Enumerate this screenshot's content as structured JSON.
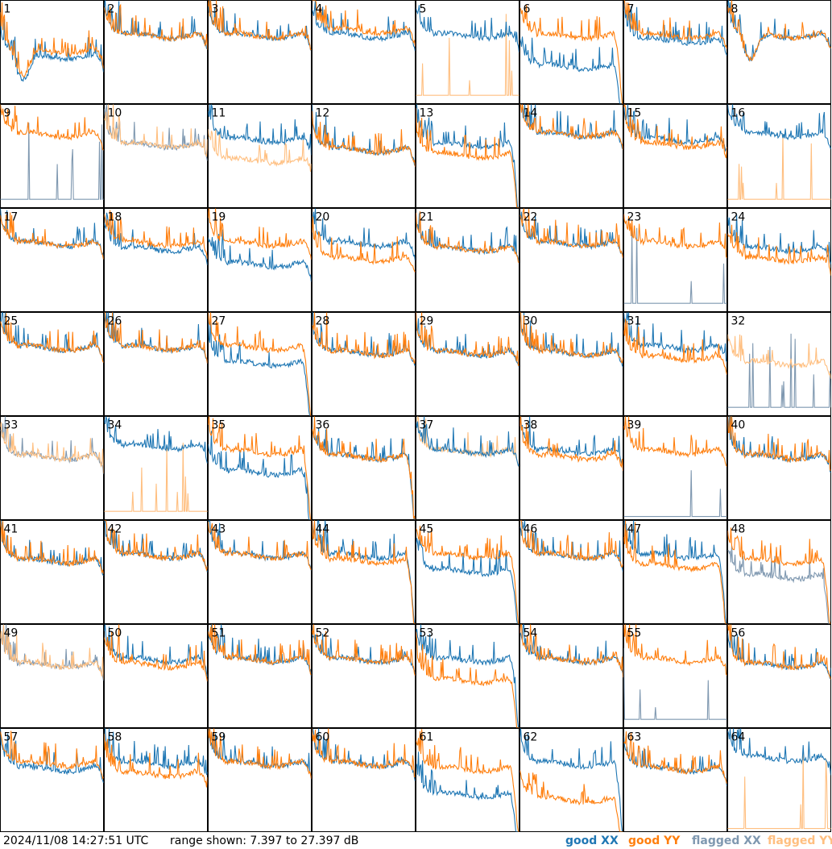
{
  "chart_data": {
    "type": "line",
    "layout": "8x8 small multiples",
    "panel_count": 64,
    "x_axis_visible": false,
    "y_axis_visible": false,
    "grid": false,
    "y_range_db": [
      7.397,
      27.397
    ],
    "colors": {
      "good_xx": "#1f77b4",
      "good_yy": "#ff7f0e",
      "flagged_xx": "#7f98b0",
      "flagged_yy": "#ffbf80"
    },
    "legend": {
      "placement": "bottom-right",
      "entries": [
        {
          "key": "good_xx",
          "label": "good XX"
        },
        {
          "key": "good_yy",
          "label": "good YY"
        },
        {
          "key": "flagged_xx",
          "label": "flagged XX"
        },
        {
          "key": "flagged_yy",
          "label": "flagged YY"
        }
      ]
    },
    "panels": [
      {
        "label": "1",
        "xx": "good",
        "yy": "good",
        "shape": "dip",
        "xx_level": 16,
        "yy_level": 17
      },
      {
        "label": "2",
        "xx": "good",
        "yy": "good",
        "shape": "normal",
        "xx_level": 20,
        "yy_level": 20
      },
      {
        "label": "3",
        "xx": "good",
        "yy": "good",
        "shape": "normal",
        "xx_level": 20,
        "yy_level": 20
      },
      {
        "label": "4",
        "xx": "good",
        "yy": "good",
        "shape": "normal",
        "xx_level": 20,
        "yy_level": 21
      },
      {
        "label": "5",
        "xx": "good",
        "yy": "flagged",
        "shape": "normal",
        "xx_level": 20,
        "yy_level": 9
      },
      {
        "label": "6",
        "xx": "good",
        "yy": "good",
        "shape": "drop",
        "xx_level": 14,
        "yy_level": 20
      },
      {
        "label": "7",
        "xx": "good",
        "yy": "good",
        "shape": "normal",
        "xx_level": 19,
        "yy_level": 20
      },
      {
        "label": "8",
        "xx": "good",
        "yy": "good",
        "shape": "dip",
        "xx_level": 20,
        "yy_level": 20
      },
      {
        "label": "9",
        "xx": "flagged",
        "yy": "good",
        "shape": "normal",
        "xx_level": 9,
        "yy_level": 21
      },
      {
        "label": "10",
        "xx": "flagged",
        "yy": "flagged",
        "shape": "normal",
        "xx_level": 19,
        "yy_level": 19
      },
      {
        "label": "11",
        "xx": "good",
        "yy": "flagged",
        "shape": "normal",
        "xx_level": 20,
        "yy_level": 16
      },
      {
        "label": "12",
        "xx": "good",
        "yy": "good",
        "shape": "normal",
        "xx_level": 18,
        "yy_level": 18
      },
      {
        "label": "13",
        "xx": "good",
        "yy": "good",
        "shape": "drop",
        "xx_level": 19,
        "yy_level": 17
      },
      {
        "label": "14",
        "xx": "good",
        "yy": "good",
        "shape": "normal",
        "xx_level": 21,
        "yy_level": 21
      },
      {
        "label": "15",
        "xx": "good",
        "yy": "good",
        "shape": "normal",
        "xx_level": 20,
        "yy_level": 19
      },
      {
        "label": "16",
        "xx": "good",
        "yy": "flagged",
        "shape": "normal",
        "xx_level": 21,
        "yy_level": 9
      },
      {
        "label": "17",
        "xx": "good",
        "yy": "good",
        "shape": "normal",
        "xx_level": 20,
        "yy_level": 20
      },
      {
        "label": "18",
        "xx": "good",
        "yy": "good",
        "shape": "normal",
        "xx_level": 19,
        "yy_level": 20
      },
      {
        "label": "19",
        "xx": "good",
        "yy": "good",
        "shape": "normal",
        "xx_level": 16,
        "yy_level": 20
      },
      {
        "label": "20",
        "xx": "good",
        "yy": "good",
        "shape": "normal",
        "xx_level": 20,
        "yy_level": 17
      },
      {
        "label": "21",
        "xx": "good",
        "yy": "good",
        "shape": "normal",
        "xx_level": 19,
        "yy_level": 19
      },
      {
        "label": "22",
        "xx": "good",
        "yy": "good",
        "shape": "normal",
        "xx_level": 20,
        "yy_level": 20
      },
      {
        "label": "23",
        "xx": "flagged",
        "yy": "good",
        "shape": "normal",
        "xx_level": 9,
        "yy_level": 20
      },
      {
        "label": "24",
        "xx": "good",
        "yy": "good",
        "shape": "normal",
        "xx_level": 19,
        "yy_level": 17
      },
      {
        "label": "25",
        "xx": "good",
        "yy": "good",
        "shape": "normal",
        "xx_level": 20,
        "yy_level": 20
      },
      {
        "label": "26",
        "xx": "good",
        "yy": "good",
        "shape": "normal",
        "xx_level": 20,
        "yy_level": 20
      },
      {
        "label": "27",
        "xx": "good",
        "yy": "good",
        "shape": "drop",
        "xx_level": 17,
        "yy_level": 20
      },
      {
        "label": "28",
        "xx": "good",
        "yy": "good",
        "shape": "normal",
        "xx_level": 19,
        "yy_level": 19
      },
      {
        "label": "29",
        "xx": "good",
        "yy": "good",
        "shape": "normal",
        "xx_level": 19,
        "yy_level": 19
      },
      {
        "label": "30",
        "xx": "good",
        "yy": "good",
        "shape": "normal",
        "xx_level": 19,
        "yy_level": 19
      },
      {
        "label": "31",
        "xx": "good",
        "yy": "good",
        "shape": "normal",
        "xx_level": 20,
        "yy_level": 18
      },
      {
        "label": "32",
        "xx": "flagged",
        "yy": "flagged",
        "shape": "normal",
        "xx_level": 9,
        "yy_level": 17
      },
      {
        "label": "33",
        "xx": "flagged",
        "yy": "flagged",
        "shape": "normal",
        "xx_level": 19,
        "yy_level": 19
      },
      {
        "label": "34",
        "xx": "good",
        "yy": "flagged",
        "shape": "normal",
        "xx_level": 21,
        "yy_level": 9
      },
      {
        "label": "35",
        "xx": "good",
        "yy": "good",
        "shape": "drop",
        "xx_level": 16,
        "yy_level": 20
      },
      {
        "label": "36",
        "xx": "good",
        "yy": "good",
        "shape": "drop",
        "xx_level": 19,
        "yy_level": 19
      },
      {
        "label": "37",
        "xx": "good",
        "yy": "flagged",
        "shape": "normal",
        "xx_level": 20,
        "yy_level": 20
      },
      {
        "label": "38",
        "xx": "good",
        "yy": "good",
        "shape": "normal",
        "xx_level": 20,
        "yy_level": 19
      },
      {
        "label": "39",
        "xx": "flagged",
        "yy": "good",
        "shape": "normal",
        "xx_level": 8,
        "yy_level": 20
      },
      {
        "label": "40",
        "xx": "good",
        "yy": "good",
        "shape": "normal",
        "xx_level": 19,
        "yy_level": 19
      },
      {
        "label": "41",
        "xx": "good",
        "yy": "good",
        "shape": "normal",
        "xx_level": 19,
        "yy_level": 19
      },
      {
        "label": "42",
        "xx": "good",
        "yy": "good",
        "shape": "normal",
        "xx_level": 20,
        "yy_level": 20
      },
      {
        "label": "43",
        "xx": "good",
        "yy": "good",
        "shape": "normal",
        "xx_level": 20,
        "yy_level": 20
      },
      {
        "label": "44",
        "xx": "good",
        "yy": "good",
        "shape": "drop",
        "xx_level": 20,
        "yy_level": 19
      },
      {
        "label": "45",
        "xx": "good",
        "yy": "good",
        "shape": "drop",
        "xx_level": 17,
        "yy_level": 20
      },
      {
        "label": "46",
        "xx": "good",
        "yy": "good",
        "shape": "normal",
        "xx_level": 20,
        "yy_level": 20
      },
      {
        "label": "47",
        "xx": "good",
        "yy": "good",
        "shape": "drop",
        "xx_level": 20,
        "yy_level": 18
      },
      {
        "label": "48",
        "xx": "flagged",
        "yy": "good",
        "shape": "drop",
        "xx_level": 16,
        "yy_level": 19
      },
      {
        "label": "49",
        "xx": "flagged",
        "yy": "flagged",
        "shape": "normal",
        "xx_level": 19,
        "yy_level": 19
      },
      {
        "label": "50",
        "xx": "good",
        "yy": "good",
        "shape": "normal",
        "xx_level": 20,
        "yy_level": 19
      },
      {
        "label": "51",
        "xx": "good",
        "yy": "good",
        "shape": "normal",
        "xx_level": 20,
        "yy_level": 20
      },
      {
        "label": "52",
        "xx": "good",
        "yy": "good",
        "shape": "normal",
        "xx_level": 20,
        "yy_level": 20
      },
      {
        "label": "53",
        "xx": "good",
        "yy": "good",
        "shape": "drop",
        "xx_level": 20,
        "yy_level": 16
      },
      {
        "label": "54",
        "xx": "good",
        "yy": "good",
        "shape": "normal",
        "xx_level": 20,
        "yy_level": 20
      },
      {
        "label": "55",
        "xx": "flagged",
        "yy": "good",
        "shape": "normal",
        "xx_level": 9,
        "yy_level": 20
      },
      {
        "label": "56",
        "xx": "good",
        "yy": "good",
        "shape": "normal",
        "xx_level": 19,
        "yy_level": 19
      },
      {
        "label": "57",
        "xx": "good",
        "yy": "good",
        "shape": "normal",
        "xx_level": 19,
        "yy_level": 20
      },
      {
        "label": "58",
        "xx": "good",
        "yy": "good",
        "shape": "normal",
        "xx_level": 20,
        "yy_level": 18
      },
      {
        "label": "59",
        "xx": "good",
        "yy": "good",
        "shape": "normal",
        "xx_level": 20,
        "yy_level": 20
      },
      {
        "label": "60",
        "xx": "good",
        "yy": "good",
        "shape": "normal",
        "xx_level": 20,
        "yy_level": 20
      },
      {
        "label": "61",
        "xx": "good",
        "yy": "good",
        "shape": "drop",
        "xx_level": 14,
        "yy_level": 19
      },
      {
        "label": "62",
        "xx": "good",
        "yy": "good",
        "shape": "drop",
        "xx_level": 20,
        "yy_level": 13
      },
      {
        "label": "63",
        "xx": "good",
        "yy": "good",
        "shape": "normal",
        "xx_level": 19,
        "yy_level": 19
      },
      {
        "label": "64",
        "xx": "good",
        "yy": "flagged",
        "shape": "normal",
        "xx_level": 21,
        "yy_level": 8
      }
    ]
  },
  "footer": {
    "timestamp": "2024/11/08 14:27:51 UTC",
    "range_text": "range shown: 7.397 to 27.397 dB"
  }
}
